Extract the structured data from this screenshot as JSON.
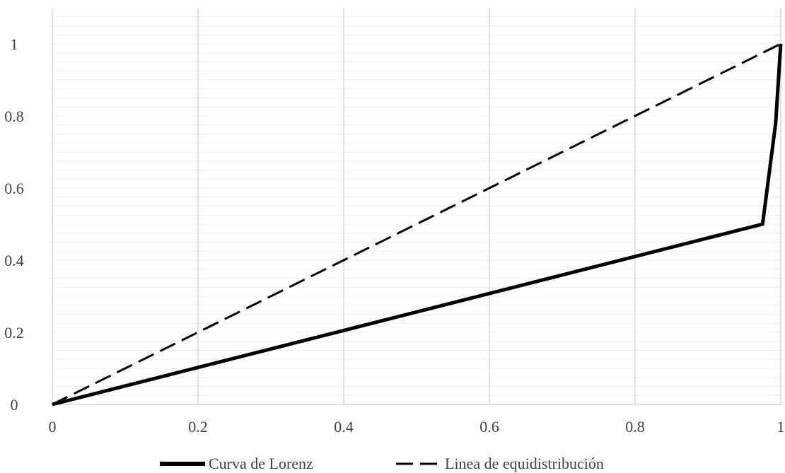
{
  "chart_data": {
    "type": "line",
    "xlim": [
      0,
      1
    ],
    "ylim": [
      0,
      1.1
    ],
    "x_ticks": [
      0,
      0.2,
      0.4,
      0.6,
      0.8,
      1
    ],
    "y_ticks": [
      0,
      0.2,
      0.4,
      0.6,
      0.8,
      1
    ],
    "x_tick_labels": [
      "0",
      "0.2",
      "0.4",
      "0.6",
      "0.8",
      "1"
    ],
    "y_tick_labels": [
      "0",
      "0.2",
      "0.4",
      "0.6",
      "0.8",
      "1"
    ],
    "grid": {
      "vertical": true,
      "horizontal_minor": true
    },
    "legend_position": "bottom",
    "series": [
      {
        "name": "Curva de Lorenz",
        "style": "solid",
        "color": "#000000",
        "points": [
          [
            0,
            0
          ],
          [
            0.975,
            0.5
          ],
          [
            0.993,
            0.78
          ],
          [
            1,
            1
          ]
        ]
      },
      {
        "name": "Linea de equidistribución",
        "style": "dashed",
        "color": "#000000",
        "points": [
          [
            0,
            0
          ],
          [
            1,
            1
          ]
        ]
      }
    ]
  }
}
